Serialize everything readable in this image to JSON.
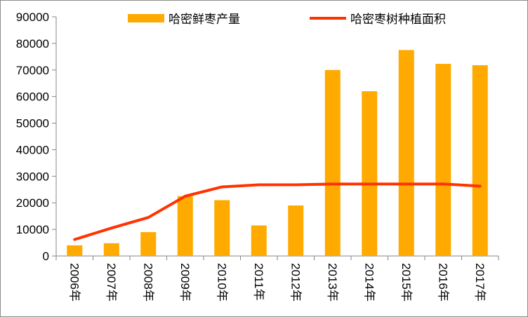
{
  "chart_data": {
    "type": "bar",
    "categories": [
      "2006年",
      "2007年",
      "2008年",
      "2009年",
      "2010年",
      "2011年",
      "2012年",
      "2013年",
      "2014年",
      "2015年",
      "2016年",
      "2017年"
    ],
    "series": [
      {
        "name": "哈密鲜枣产量",
        "type": "bar",
        "color": "#FFAA00",
        "values": [
          4000,
          4800,
          9000,
          22500,
          21000,
          11500,
          19000,
          70000,
          62000,
          77500,
          72300,
          71800
        ]
      },
      {
        "name": "哈密枣树种植面积",
        "type": "line",
        "color": "#FF3300",
        "values": [
          6200,
          10500,
          14500,
          22500,
          26000,
          26800,
          26800,
          27100,
          27100,
          27100,
          27100,
          26300
        ]
      }
    ],
    "ylim": [
      0,
      90000
    ],
    "yticks": [
      0,
      10000,
      20000,
      30000,
      40000,
      50000,
      60000,
      70000,
      80000,
      90000
    ],
    "grid": false,
    "legend_position": "top"
  }
}
